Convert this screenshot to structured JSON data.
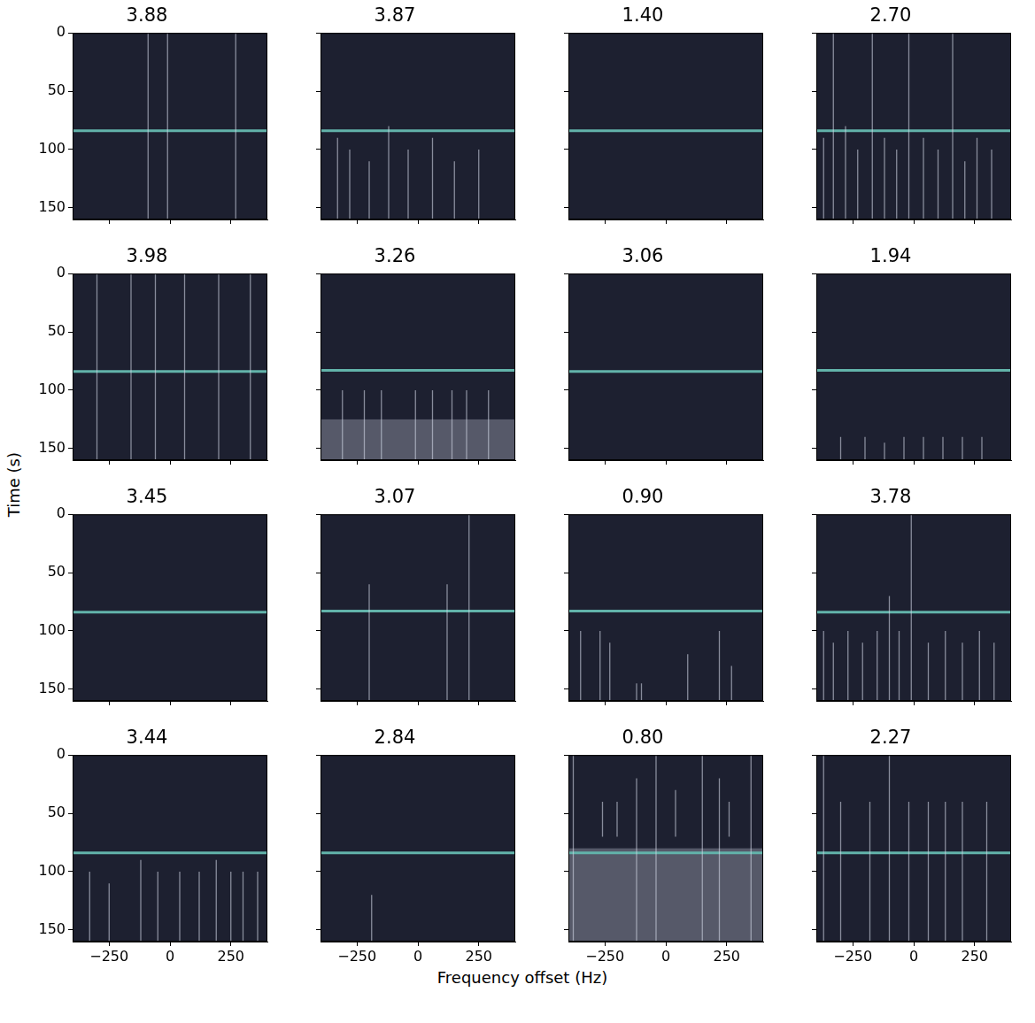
{
  "x_label": "Frequency offset (Hz)",
  "y_label": "Time (s)",
  "chart_data": [
    {
      "type": "spectrogram",
      "title": "3.88",
      "xlim": [
        -400,
        400
      ],
      "ylim": [
        160,
        0
      ],
      "xticks": [
        {
          "value": -250,
          "label": "−250"
        },
        0,
        250
      ],
      "yticks": [
        0,
        50,
        100,
        150
      ],
      "tick_labels": "y",
      "color": "#d0d5e4",
      "hline": {
        "y": 84,
        "color": "#62b3aa"
      },
      "streaks": [
        [
          -90,
          0,
          160
        ],
        [
          -10,
          0,
          160
        ],
        [
          270,
          0,
          160
        ]
      ],
      "bands": []
    },
    {
      "type": "spectrogram",
      "title": "3.87",
      "xlim": [
        -400,
        400
      ],
      "ylim": [
        160,
        0
      ],
      "xticks": [
        {
          "value": -250,
          "label": "−250"
        },
        0,
        250
      ],
      "yticks": [
        0,
        50,
        100,
        150
      ],
      "tick_labels": false,
      "color": "#d0d5e4",
      "hline": {
        "y": 84,
        "color": "#62b3aa"
      },
      "streaks": [
        [
          -330,
          90,
          160
        ],
        [
          -280,
          100,
          160
        ],
        [
          -200,
          110,
          160
        ],
        [
          -120,
          80,
          160
        ],
        [
          -40,
          100,
          160
        ],
        [
          60,
          90,
          160
        ],
        [
          150,
          110,
          160
        ],
        [
          250,
          100,
          160
        ]
      ],
      "bands": []
    },
    {
      "type": "spectrogram",
      "title": "1.40",
      "xlim": [
        -400,
        400
      ],
      "ylim": [
        160,
        0
      ],
      "xticks": [
        {
          "value": -250,
          "label": "−250"
        },
        0,
        250
      ],
      "yticks": [
        0,
        50,
        100,
        150
      ],
      "tick_labels": false,
      "color": "#d0d5e4",
      "hline": {
        "y": 84,
        "color": "#62b3aa"
      },
      "streaks": [],
      "bands": []
    },
    {
      "type": "spectrogram",
      "title": "2.70",
      "xlim": [
        -400,
        400
      ],
      "ylim": [
        160,
        0
      ],
      "xticks": [
        {
          "value": -250,
          "label": "−250"
        },
        0,
        250
      ],
      "yticks": [
        0,
        50,
        100,
        150
      ],
      "tick_labels": false,
      "color": "#d0d5e4",
      "hline": {
        "y": 84,
        "color": "#62b3aa"
      },
      "streaks": [
        [
          -370,
          90,
          160
        ],
        [
          -330,
          0,
          160
        ],
        [
          -280,
          80,
          160
        ],
        [
          -230,
          100,
          160
        ],
        [
          -170,
          0,
          160
        ],
        [
          -120,
          90,
          160
        ],
        [
          -70,
          100,
          160
        ],
        [
          -20,
          0,
          160
        ],
        [
          40,
          90,
          160
        ],
        [
          100,
          100,
          160
        ],
        [
          160,
          0,
          160
        ],
        [
          210,
          110,
          160
        ],
        [
          260,
          90,
          160
        ],
        [
          320,
          100,
          160
        ]
      ],
      "bands": []
    },
    {
      "type": "spectrogram",
      "title": "3.98",
      "xlim": [
        -400,
        400
      ],
      "ylim": [
        160,
        0
      ],
      "xticks": [
        {
          "value": -250,
          "label": "−250"
        },
        0,
        250
      ],
      "yticks": [
        0,
        50,
        100,
        150
      ],
      "tick_labels": "y",
      "color": "#d0d5e4",
      "hline": {
        "y": 84,
        "color": "#62b3aa"
      },
      "streaks": [
        [
          -300,
          0,
          160
        ],
        [
          -160,
          0,
          160
        ],
        [
          -60,
          0,
          160
        ],
        [
          60,
          0,
          160
        ],
        [
          200,
          0,
          160
        ],
        [
          330,
          0,
          160
        ]
      ],
      "bands": []
    },
    {
      "type": "spectrogram",
      "title": "3.26",
      "xlim": [
        -400,
        400
      ],
      "ylim": [
        160,
        0
      ],
      "xticks": [
        {
          "value": -250,
          "label": "−250"
        },
        0,
        250
      ],
      "yticks": [
        0,
        50,
        100,
        150
      ],
      "tick_labels": false,
      "color": "#d0d5e4",
      "hline": {
        "y": 83,
        "color": "#62b3aa"
      },
      "streaks": [
        [
          -310,
          100,
          160
        ],
        [
          -220,
          100,
          160
        ],
        [
          -150,
          100,
          160
        ],
        [
          -10,
          100,
          160
        ],
        [
          60,
          100,
          160
        ],
        [
          140,
          100,
          160
        ],
        [
          200,
          100,
          160
        ],
        [
          290,
          100,
          160
        ]
      ],
      "bands": [
        [
          125,
          160
        ]
      ]
    },
    {
      "type": "spectrogram",
      "title": "3.06",
      "xlim": [
        -400,
        400
      ],
      "ylim": [
        160,
        0
      ],
      "xticks": [
        {
          "value": -250,
          "label": "−250"
        },
        0,
        250
      ],
      "yticks": [
        0,
        50,
        100,
        150
      ],
      "tick_labels": false,
      "color": "#d0d5e4",
      "hline": {
        "y": 84,
        "color": "#62b3aa"
      },
      "streaks": [],
      "bands": []
    },
    {
      "type": "spectrogram",
      "title": "1.94",
      "xlim": [
        -400,
        400
      ],
      "ylim": [
        160,
        0
      ],
      "xticks": [
        {
          "value": -250,
          "label": "−250"
        },
        0,
        250
      ],
      "yticks": [
        0,
        50,
        100,
        150
      ],
      "tick_labels": false,
      "color": "#d0d5e4",
      "hline": {
        "y": 83,
        "color": "#62b3aa"
      },
      "streaks": [
        [
          -300,
          140,
          160
        ],
        [
          -200,
          140,
          160
        ],
        [
          -120,
          145,
          160
        ],
        [
          -40,
          140,
          160
        ],
        [
          40,
          140,
          160
        ],
        [
          120,
          140,
          160
        ],
        [
          200,
          140,
          160
        ],
        [
          280,
          140,
          160
        ]
      ],
      "bands": []
    },
    {
      "type": "spectrogram",
      "title": "3.45",
      "xlim": [
        -400,
        400
      ],
      "ylim": [
        160,
        0
      ],
      "xticks": [
        {
          "value": -250,
          "label": "−250"
        },
        0,
        250
      ],
      "yticks": [
        0,
        50,
        100,
        150
      ],
      "tick_labels": "y",
      "color": "#d0d5e4",
      "hline": {
        "y": 84,
        "color": "#62b3aa"
      },
      "streaks": [],
      "bands": []
    },
    {
      "type": "spectrogram",
      "title": "3.07",
      "xlim": [
        -400,
        400
      ],
      "ylim": [
        160,
        0
      ],
      "xticks": [
        {
          "value": -250,
          "label": "−250"
        },
        0,
        250
      ],
      "yticks": [
        0,
        50,
        100,
        150
      ],
      "tick_labels": false,
      "color": "#d0d5e4",
      "hline": {
        "y": 83,
        "color": "#62b3aa"
      },
      "streaks": [
        [
          -200,
          60,
          160
        ],
        [
          120,
          60,
          160
        ],
        [
          210,
          0,
          160
        ]
      ],
      "bands": []
    },
    {
      "type": "spectrogram",
      "title": "0.90",
      "xlim": [
        -400,
        400
      ],
      "ylim": [
        160,
        0
      ],
      "xticks": [
        {
          "value": -250,
          "label": "−250"
        },
        0,
        250
      ],
      "yticks": [
        0,
        50,
        100,
        150
      ],
      "tick_labels": false,
      "color": "#d0d5e4",
      "hline": {
        "y": 83,
        "color": "#62b3aa"
      },
      "streaks": [
        [
          -350,
          100,
          160
        ],
        [
          -270,
          100,
          160
        ],
        [
          -230,
          110,
          160
        ],
        [
          -120,
          145,
          160
        ],
        [
          -100,
          145,
          160
        ],
        [
          90,
          120,
          160
        ],
        [
          220,
          100,
          160
        ],
        [
          270,
          130,
          160
        ]
      ],
      "bands": []
    },
    {
      "type": "spectrogram",
      "title": "3.78",
      "xlim": [
        -400,
        400
      ],
      "ylim": [
        160,
        0
      ],
      "xticks": [
        {
          "value": -250,
          "label": "−250"
        },
        0,
        250
      ],
      "yticks": [
        0,
        50,
        100,
        150
      ],
      "tick_labels": false,
      "color": "#d0d5e4",
      "hline": {
        "y": 84,
        "color": "#62b3aa"
      },
      "streaks": [
        [
          -370,
          100,
          160
        ],
        [
          -330,
          110,
          160
        ],
        [
          -270,
          100,
          160
        ],
        [
          -210,
          110,
          160
        ],
        [
          -150,
          100,
          160
        ],
        [
          -100,
          70,
          160
        ],
        [
          -60,
          100,
          160
        ],
        [
          -10,
          0,
          160
        ],
        [
          60,
          110,
          160
        ],
        [
          130,
          100,
          160
        ],
        [
          200,
          110,
          160
        ],
        [
          270,
          100,
          160
        ],
        [
          330,
          110,
          160
        ]
      ],
      "bands": []
    },
    {
      "type": "spectrogram",
      "title": "3.44",
      "xlim": [
        -400,
        400
      ],
      "ylim": [
        160,
        0
      ],
      "xticks": [
        {
          "value": -250,
          "label": "−250"
        },
        0,
        250
      ],
      "yticks": [
        0,
        50,
        100,
        150
      ],
      "color": "#d0d5e4",
      "hline": {
        "y": 84,
        "color": "#62b3aa"
      },
      "streaks": [
        [
          -330,
          100,
          160
        ],
        [
          -250,
          110,
          160
        ],
        [
          -120,
          90,
          160
        ],
        [
          -50,
          100,
          160
        ],
        [
          40,
          100,
          160
        ],
        [
          120,
          100,
          160
        ],
        [
          190,
          90,
          160
        ],
        [
          250,
          100,
          160
        ],
        [
          300,
          100,
          160
        ],
        [
          360,
          100,
          160
        ]
      ],
      "bands": []
    },
    {
      "type": "spectrogram",
      "title": "2.84",
      "xlim": [
        -400,
        400
      ],
      "ylim": [
        160,
        0
      ],
      "xticks": [
        {
          "value": -250,
          "label": "−250"
        },
        0,
        250
      ],
      "yticks": [
        0,
        50,
        100,
        150
      ],
      "tick_labels": "x",
      "color": "#d0d5e4",
      "hline": {
        "y": 84,
        "color": "#62b3aa"
      },
      "streaks": [
        [
          -190,
          120,
          160
        ]
      ],
      "bands": []
    },
    {
      "type": "spectrogram",
      "title": "0.80",
      "xlim": [
        -400,
        400
      ],
      "ylim": [
        160,
        0
      ],
      "xticks": [
        {
          "value": -250,
          "label": "−250"
        },
        0,
        250
      ],
      "yticks": [
        0,
        50,
        100,
        150
      ],
      "tick_labels": "x",
      "color": "#d0d5e4",
      "hline": {
        "y": 84,
        "color": "#62b3aa"
      },
      "streaks": [
        [
          -380,
          0,
          160
        ],
        [
          -260,
          40,
          70
        ],
        [
          -200,
          40,
          70
        ],
        [
          -120,
          20,
          160
        ],
        [
          -40,
          0,
          160
        ],
        [
          40,
          30,
          70
        ],
        [
          150,
          0,
          160
        ],
        [
          220,
          20,
          160
        ],
        [
          260,
          40,
          70
        ],
        [
          350,
          0,
          160
        ]
      ],
      "bands": [
        [
          80,
          160
        ]
      ]
    },
    {
      "type": "spectrogram",
      "title": "2.27",
      "xlim": [
        -400,
        400
      ],
      "ylim": [
        160,
        0
      ],
      "xticks": [
        {
          "value": -250,
          "label": "−250"
        },
        0,
        250
      ],
      "yticks": [
        0,
        50,
        100,
        150
      ],
      "tick_labels": "x",
      "color": "#d0d5e4",
      "hline": {
        "y": 84,
        "color": "#62b3aa"
      },
      "streaks": [
        [
          -370,
          0,
          160
        ],
        [
          -300,
          40,
          160
        ],
        [
          -180,
          40,
          160
        ],
        [
          -100,
          0,
          160
        ],
        [
          -20,
          40,
          160
        ],
        [
          60,
          40,
          160
        ],
        [
          130,
          40,
          160
        ],
        [
          200,
          40,
          160
        ],
        [
          300,
          40,
          160
        ]
      ],
      "bands": []
    }
  ]
}
